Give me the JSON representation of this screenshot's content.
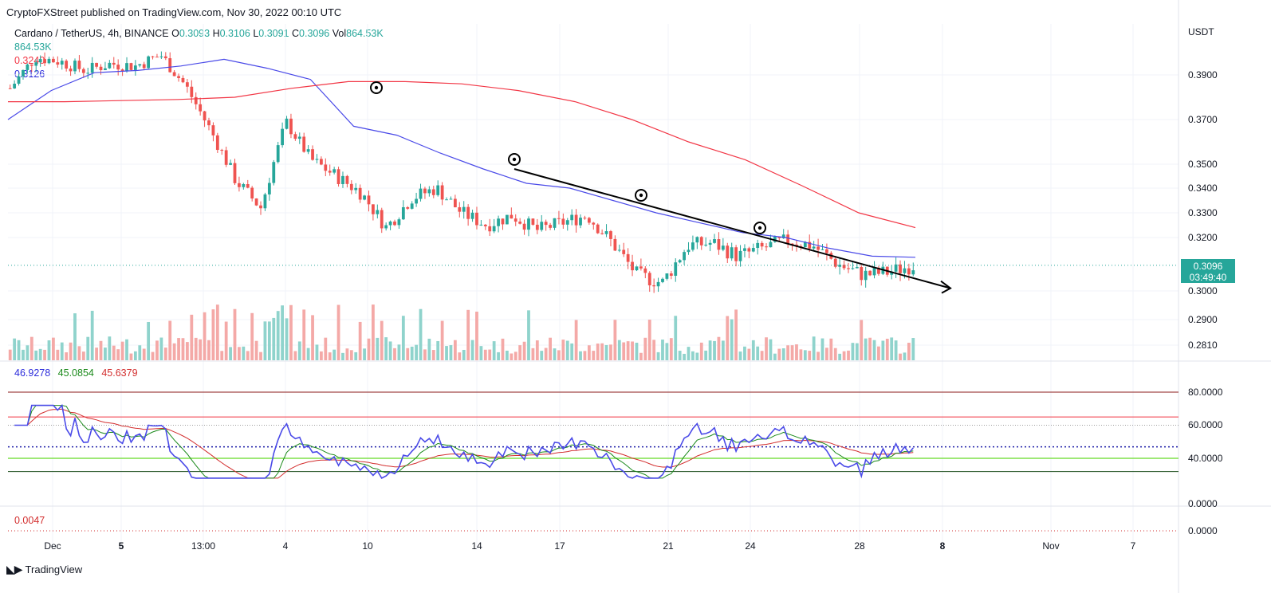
{
  "header": {
    "published": "CryptoFXStreet published on TradingView.com, Nov 30, 2022 00:10 UTC"
  },
  "legend": {
    "symbol": "Cardano / TetherUS, 4h, BINANCE",
    "o_label": "O",
    "o": "0.3093",
    "h_label": "H",
    "h": "0.3106",
    "l_label": "L",
    "l": "0.3091",
    "c_label": "C",
    "c": "0.3096",
    "vol_label": "Vol",
    "vol": "864.53K",
    "volume_value": "864.53K",
    "ma50_value": "0.3240",
    "ma20_value": "0.3126"
  },
  "price_axis": {
    "currency": "USDT",
    "ticks": [
      "0.3900",
      "0.3700",
      "0.3500",
      "0.3400",
      "0.3300",
      "0.3200",
      "0.3000",
      "0.2900",
      "0.2810"
    ]
  },
  "price_tag": {
    "price": "0.3096",
    "countdown": "03:49:40"
  },
  "rsi": {
    "values": [
      "46.9278",
      "45.0854",
      "45.6379"
    ],
    "colors": [
      "#2b2bdb",
      "#1b8a1b",
      "#d32f2f"
    ],
    "axis_ticks": [
      "80.0000",
      "60.0000",
      "40.0000"
    ]
  },
  "macd": {
    "value": "0.0047",
    "axis_ticks": [
      "0.0000",
      "0.0000"
    ]
  },
  "time_axis": [
    "13:00",
    "Nov",
    "4",
    "7",
    "10",
    "14",
    "17",
    "21",
    "24",
    "28",
    "Dec",
    "5",
    "8"
  ],
  "footer": {
    "brand": "TradingView"
  },
  "colors": {
    "up": "#26a69a",
    "down": "#ef5350",
    "ma20": "#4a4ae8",
    "ma50": "#f23645",
    "trend": "#000000"
  },
  "chart_data": {
    "type": "candlestick",
    "symbol": "ADA/USDT",
    "timeframe": "4h",
    "price_range": [
      0.281,
      0.395
    ],
    "dates": [
      "13:00",
      "Nov",
      "4",
      "7",
      "10",
      "14",
      "17",
      "21",
      "24",
      "28"
    ],
    "close_path": [
      0.384,
      0.398,
      0.396,
      0.392,
      0.395,
      0.394,
      0.399,
      0.385,
      0.365,
      0.343,
      0.332,
      0.369,
      0.352,
      0.345,
      0.338,
      0.324,
      0.336,
      0.34,
      0.33,
      0.325,
      0.329,
      0.323,
      0.326,
      0.329,
      0.318,
      0.306,
      0.303,
      0.317,
      0.318,
      0.313,
      0.316,
      0.319,
      0.317,
      0.31,
      0.306,
      0.307,
      0.3096
    ],
    "ma_fast_path": [
      0.37,
      0.383,
      0.391,
      0.392,
      0.394,
      0.397,
      0.393,
      0.388,
      0.367,
      0.363,
      0.355,
      0.348,
      0.342,
      0.34,
      0.335,
      0.33,
      0.326,
      0.322,
      0.32,
      0.316,
      0.313,
      0.3126
    ],
    "ma_slow_path": [
      0.378,
      0.378,
      0.3785,
      0.379,
      0.38,
      0.384,
      0.387,
      0.387,
      0.386,
      0.383,
      0.378,
      0.37,
      0.36,
      0.352,
      0.341,
      0.33,
      0.324
    ],
    "trendline": {
      "from": [
        "Nov 15",
        0.348
      ],
      "to": [
        "Dec 1",
        0.301
      ]
    },
    "markers": 4,
    "rsi_levels": [
      80,
      65,
      60,
      40,
      30
    ],
    "current_price": 0.3096
  }
}
